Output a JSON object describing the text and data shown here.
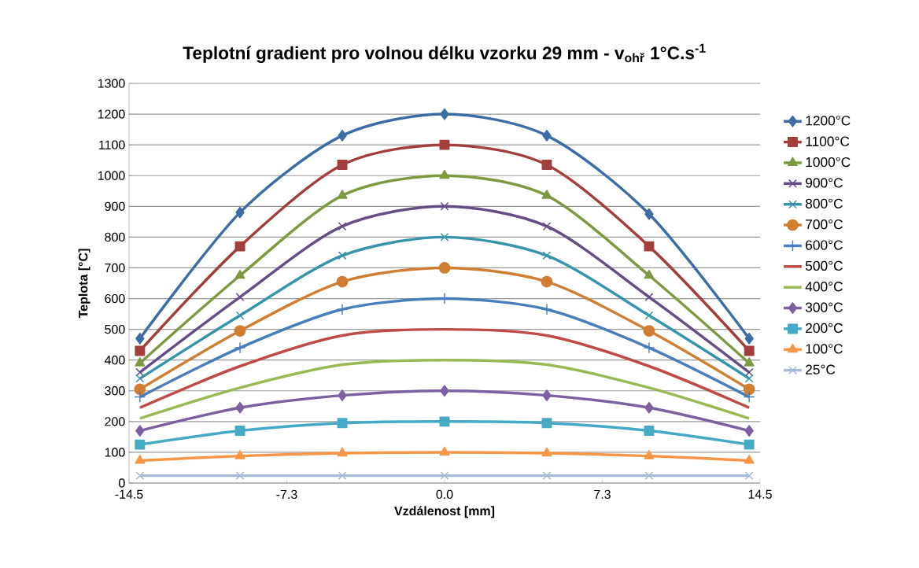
{
  "chart_data": {
    "type": "line",
    "title": "Teplotní gradient pro volnou délku vzorku 29 mm - v$_{ohř}$ 1°C.s$^{-1}$",
    "xlabel": "Vzdálenost [mm]",
    "ylabel": "Teplota [°C]",
    "x": [
      -14,
      -9.4,
      -4.7,
      0,
      4.7,
      9.4,
      14
    ],
    "xlim": [
      -14.5,
      14.5
    ],
    "xticks": [
      -14.5,
      {
        "value": -7.25,
        "label": "-7.3"
      },
      {
        "value": 0,
        "label": "0.0"
      },
      {
        "value": 7.25,
        "label": "7.3"
      },
      14.5
    ],
    "ylim": [
      0,
      1300
    ],
    "yticks": [
      0,
      100,
      200,
      300,
      400,
      500,
      600,
      700,
      800,
      900,
      1000,
      1100,
      1200,
      1300
    ],
    "grid": "y",
    "legend": "right",
    "series": [
      {
        "name": "1200°C",
        "color": "#3e6da6",
        "marker": "diamond",
        "values": [
          470,
          880,
          1130,
          1200,
          1130,
          875,
          470
        ]
      },
      {
        "name": "1100°C",
        "color": "#a23f3c",
        "marker": "square",
        "values": [
          430,
          770,
          1035,
          1100,
          1035,
          770,
          430
        ]
      },
      {
        "name": "1000°C",
        "color": "#7d9a42",
        "marker": "triangle",
        "values": [
          390,
          675,
          935,
          1000,
          935,
          675,
          390
        ]
      },
      {
        "name": "900°C",
        "color": "#664e85",
        "marker": "cross",
        "values": [
          360,
          605,
          835,
          900,
          835,
          605,
          360
        ]
      },
      {
        "name": "800°C",
        "color": "#3894a9",
        "marker": "cross",
        "values": [
          340,
          545,
          740,
          800,
          740,
          545,
          340
        ]
      },
      {
        "name": "700°C",
        "color": "#d07f32",
        "marker": "circle",
        "values": [
          305,
          495,
          655,
          700,
          655,
          495,
          305
        ]
      },
      {
        "name": "600°C",
        "color": "#4a7ebb",
        "marker": "plus",
        "values": [
          280,
          440,
          565,
          600,
          565,
          440,
          280
        ]
      },
      {
        "name": "500°C",
        "color": "#be4b48",
        "marker": "none",
        "values": [
          245,
          380,
          480,
          500,
          480,
          380,
          245
        ]
      },
      {
        "name": "400°C",
        "color": "#98b954",
        "marker": "none",
        "values": [
          210,
          310,
          385,
          400,
          385,
          310,
          210
        ]
      },
      {
        "name": "300°C",
        "color": "#7d60a0",
        "marker": "diamond",
        "values": [
          170,
          245,
          285,
          300,
          285,
          245,
          170
        ]
      },
      {
        "name": "200°C",
        "color": "#46aac5",
        "marker": "square",
        "values": [
          125,
          170,
          195,
          200,
          195,
          170,
          125
        ]
      },
      {
        "name": "100°C",
        "color": "#f79646",
        "marker": "triangle",
        "values": [
          73,
          88,
          97,
          100,
          97,
          88,
          73
        ]
      },
      {
        "name": "25°C",
        "color": "#a5b9d8",
        "marker": "cross",
        "values": [
          24,
          24,
          24,
          24,
          24,
          24,
          24
        ]
      }
    ]
  }
}
